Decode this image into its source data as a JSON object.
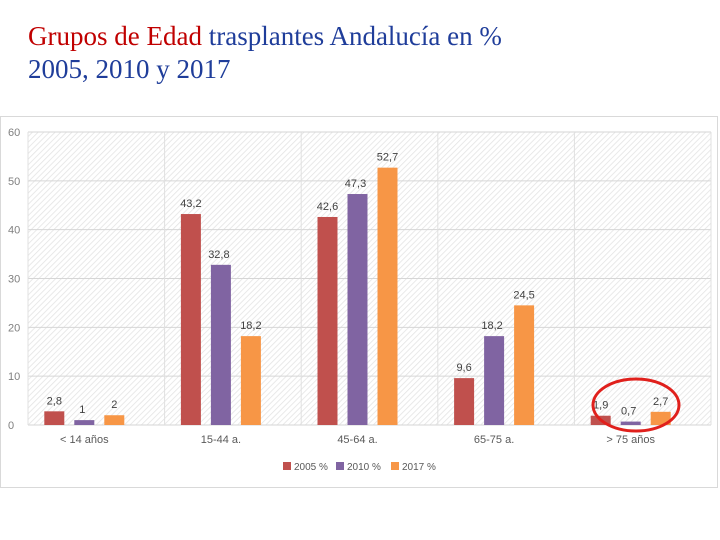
{
  "title": {
    "line1_accent": "Grupos de Edad",
    "line1_rest": " trasplantes Andalucía en %",
    "line2": "2005, 2010 y 2017"
  },
  "colors": {
    "title_accent": "#c00000",
    "title_main": "#1f3d9a",
    "highlight_circle": "#e0201c"
  },
  "chart_data": {
    "type": "bar",
    "categories": [
      "<  14 años",
      "15-44 a.",
      "45-64 a.",
      "65-75 a.",
      ">  75 años"
    ],
    "series": [
      {
        "name": "2005 %",
        "color": "#c0504d",
        "values": [
          2.8,
          43.2,
          42.6,
          9.6,
          1.9
        ],
        "labels": [
          "2,8",
          "43,2",
          "42,6",
          "9,6",
          "1,9"
        ]
      },
      {
        "name": "2010 %",
        "color": "#8064a2",
        "values": [
          1,
          32.8,
          47.3,
          18.2,
          0.7
        ],
        "labels": [
          "1",
          "32,8",
          "47,3",
          "18,2",
          "0,7"
        ]
      },
      {
        "name": "2017 %",
        "color": "#f79646",
        "values": [
          2,
          18.2,
          52.7,
          24.5,
          2.7
        ],
        "labels": [
          "2",
          "18,2",
          "52,7",
          "24,5",
          "2,7"
        ]
      }
    ],
    "ylim": [
      0,
      60
    ],
    "yticks": [
      0,
      10,
      20,
      30,
      40,
      50,
      60
    ],
    "grid": true,
    "legend": "bottom",
    "highlighted_category": ">  75 años"
  }
}
